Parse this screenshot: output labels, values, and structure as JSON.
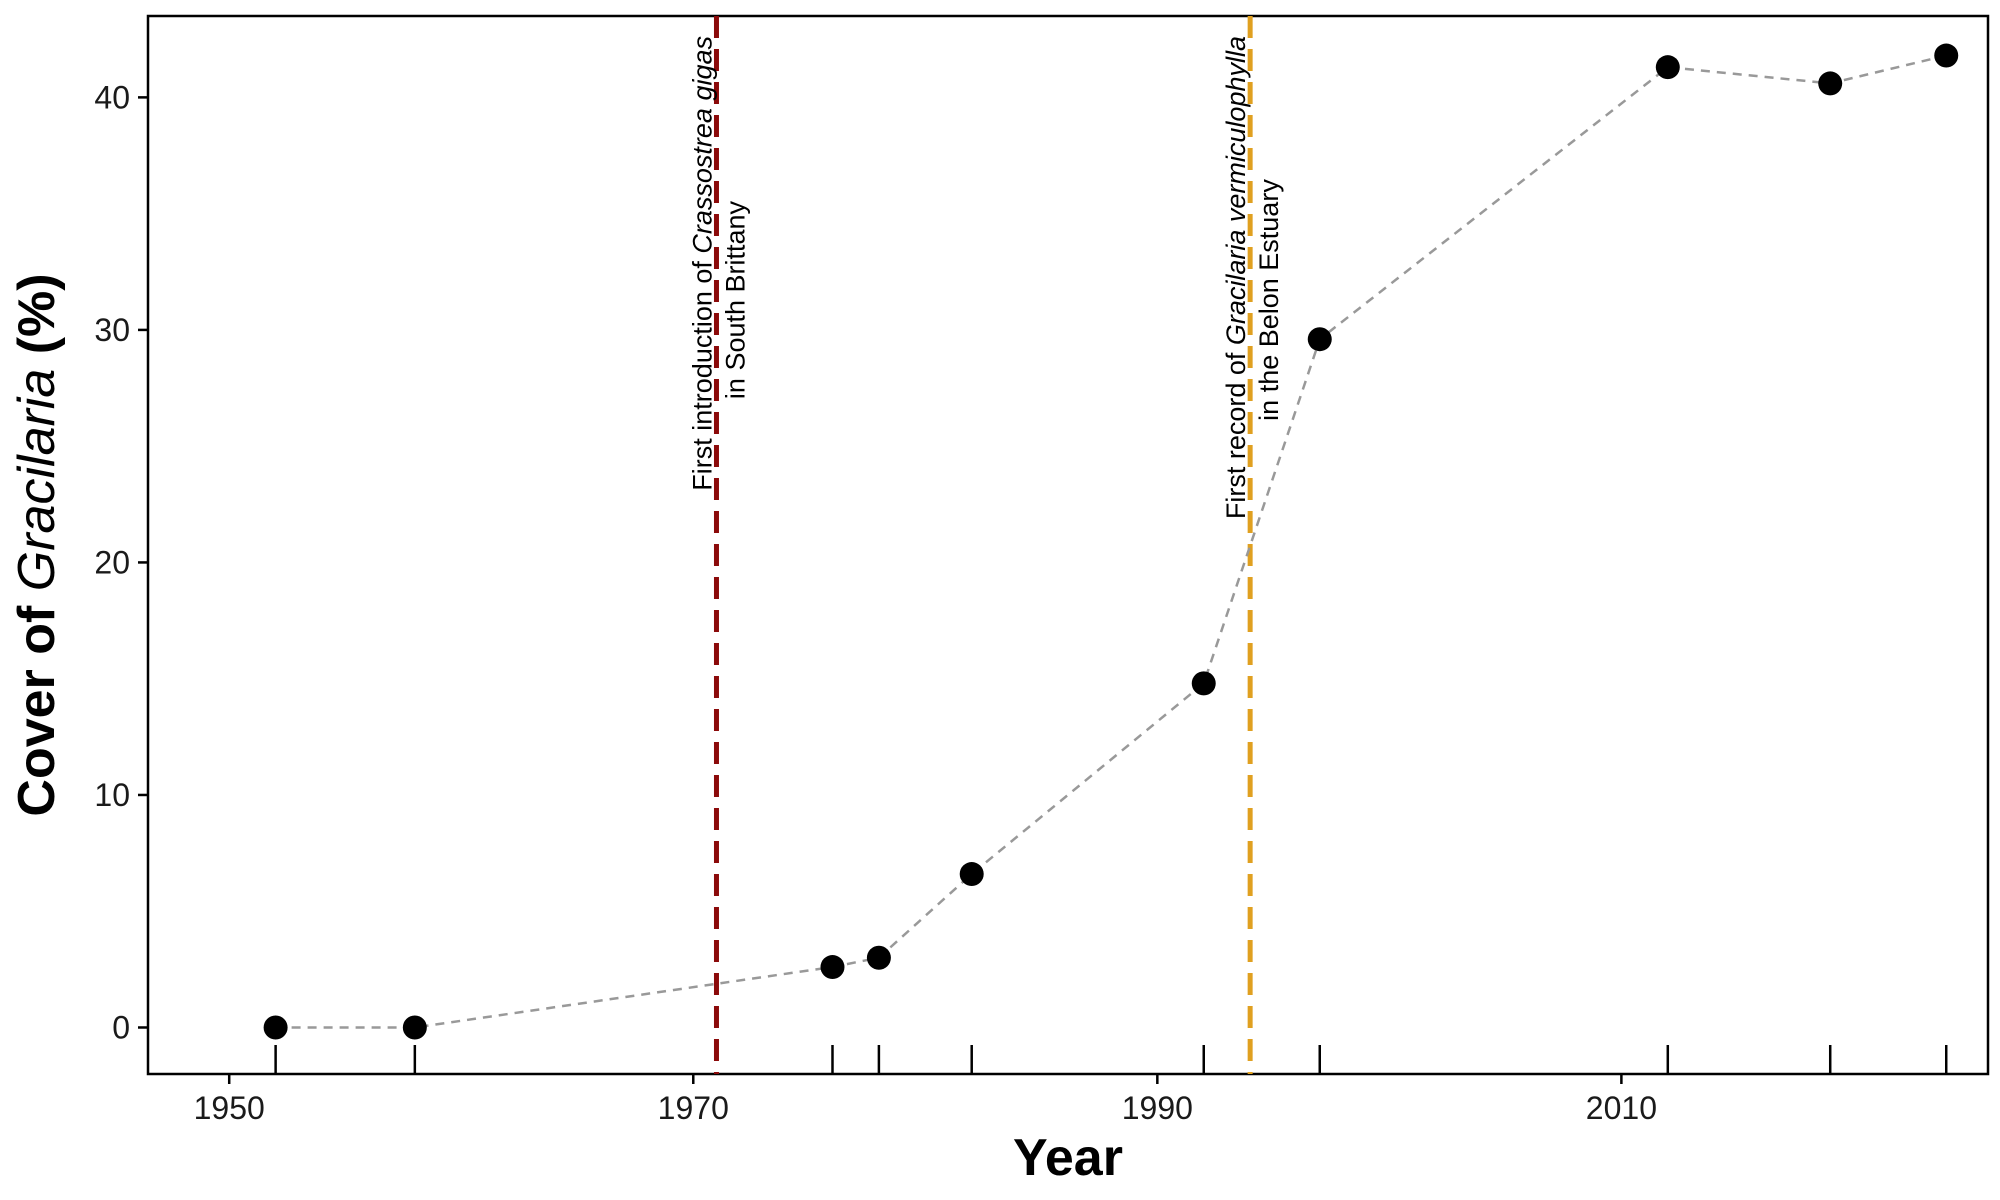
{
  "chart_data": {
    "type": "scatter",
    "title": "",
    "xlabel": "Year",
    "ylabel": {
      "prefix": "Cover of ",
      "italic": "Gracilaria",
      "suffix": " (%)"
    },
    "xlim": [
      1946.5,
      2025.8
    ],
    "ylim": [
      -2,
      43.5
    ],
    "xticks": [
      1950,
      1970,
      1990,
      2010
    ],
    "yticks": [
      0,
      10,
      20,
      30,
      40
    ],
    "grid": false,
    "series": [
      {
        "style": "points connected by dashed grey line",
        "points": [
          {
            "x": 1952,
            "y": 0
          },
          {
            "x": 1958,
            "y": 0
          },
          {
            "x": 1976,
            "y": 2.6
          },
          {
            "x": 1978,
            "y": 3.0
          },
          {
            "x": 1982,
            "y": 6.6
          },
          {
            "x": 1992,
            "y": 14.8
          },
          {
            "x": 1997,
            "y": 29.6
          },
          {
            "x": 2012,
            "y": 41.3
          },
          {
            "x": 2019,
            "y": 40.6
          },
          {
            "x": 2024,
            "y": 41.8
          }
        ]
      }
    ],
    "events": [
      {
        "x": 1971,
        "color": "#8b0a0a",
        "line1": [
          {
            "text": "First introduction of "
          },
          {
            "text": "Crassostrea gigas",
            "italic": true
          }
        ],
        "line2": [
          {
            "text": "in South Brittany"
          }
        ]
      },
      {
        "x": 1994,
        "color": "#e0a020",
        "line1": [
          {
            "text": "First record of "
          },
          {
            "text": "Gracilaria vermiculophylla",
            "italic": true
          }
        ],
        "line2": [
          {
            "text": "in the Belon Estuary"
          }
        ]
      }
    ],
    "colors": {
      "points": "#000000",
      "connector": "#999999",
      "axis": "#000000"
    }
  }
}
